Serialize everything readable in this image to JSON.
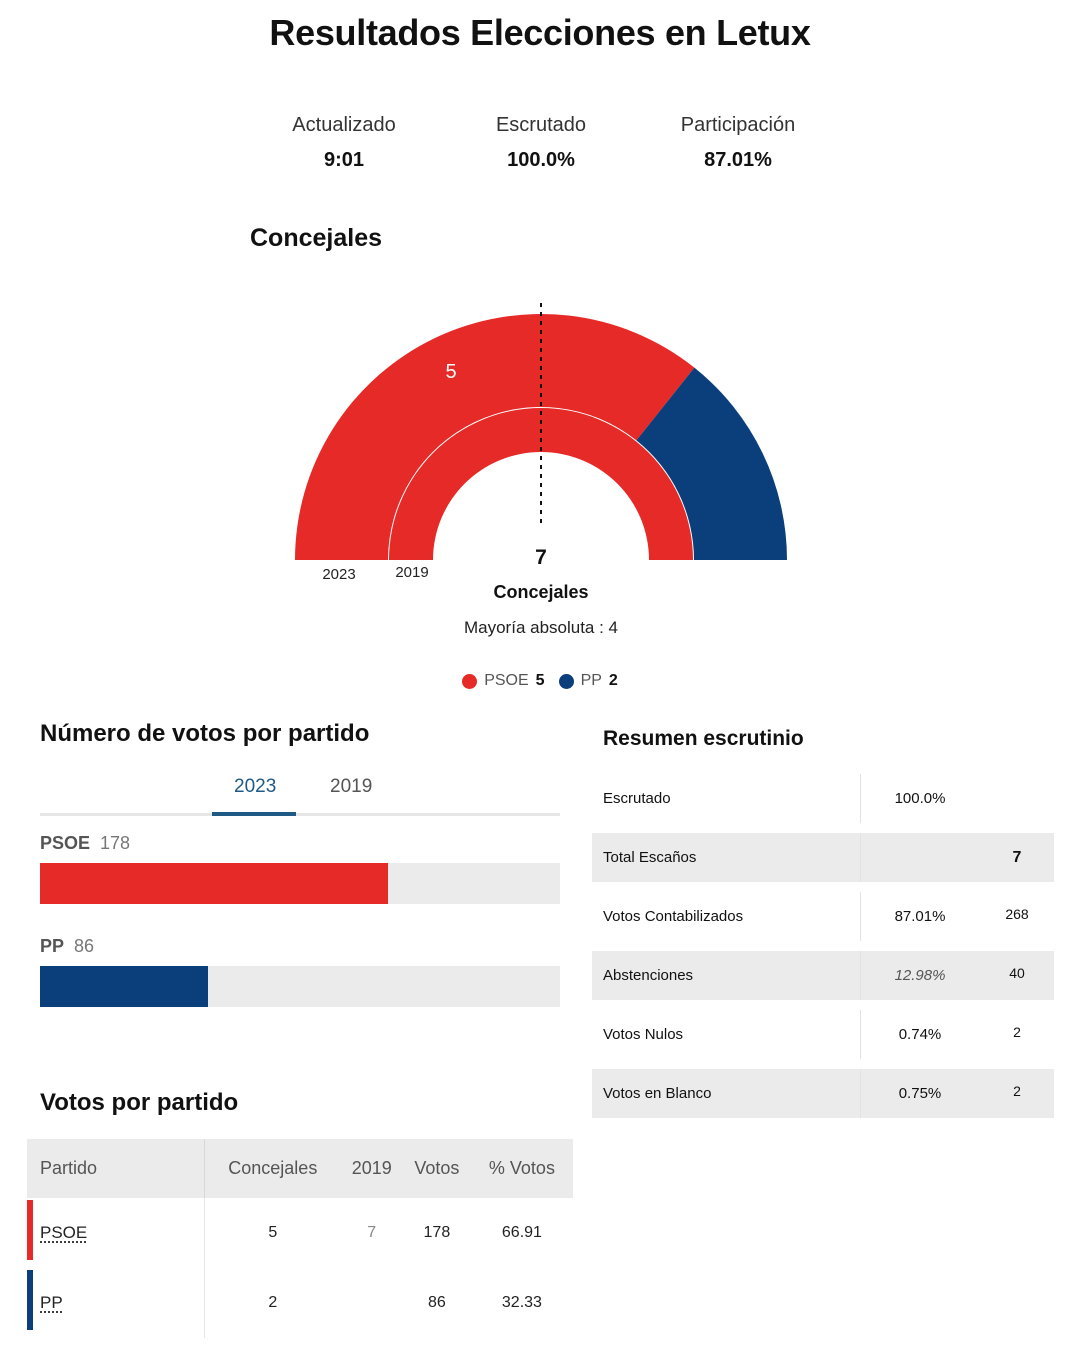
{
  "title": "Resultados Elecciones en Letux",
  "stats": {
    "updated_label": "Actualizado",
    "updated_value": "9:01",
    "counted_label": "Escrutado",
    "counted_value": "100.0%",
    "turnout_label": "Participación",
    "turnout_value": "87.01%"
  },
  "seats_section": {
    "heading": "Concejales",
    "total": "7",
    "total_label": "Concejales",
    "majority_text": "Mayoría absoluta : 4",
    "year_outer": "2023",
    "year_inner": "2019"
  },
  "legend": [
    {
      "party": "PSOE",
      "seats": "5",
      "color": "#e52a27"
    },
    {
      "party": "PP",
      "seats": "2",
      "color": "#0b3f7c"
    }
  ],
  "votes_section": {
    "heading": "Número de votos por partido",
    "tabs": [
      {
        "label": "2023",
        "active": true
      },
      {
        "label": "2019",
        "active": false
      }
    ]
  },
  "table_section": {
    "heading": "Votos por partido",
    "columns": [
      "Partido",
      "Concejales",
      "2019",
      "Votos",
      "% Votos"
    ],
    "rows": [
      {
        "party": "PSOE",
        "seats": "5",
        "prev": "7",
        "votes": "178",
        "pct": "66.91",
        "color": "#e52a27"
      },
      {
        "party": "PP",
        "seats": "2",
        "prev": "",
        "votes": "86",
        "pct": "32.33",
        "color": "#0b3f7c"
      }
    ]
  },
  "summary": {
    "heading": "Resumen escrutinio",
    "rows": [
      {
        "label": "Escrutado",
        "pct": "100.0%",
        "count": ""
      },
      {
        "label": "Total Escaños",
        "pct": "",
        "count": "7"
      },
      {
        "label": "Votos Contabilizados",
        "pct": "87.01%",
        "count": "268"
      },
      {
        "label": "Abstenciones",
        "pct": "12.98%",
        "count": "40"
      },
      {
        "label": "Votos Nulos",
        "pct": "0.74%",
        "count": "2"
      },
      {
        "label": "Votos en Blanco",
        "pct": "0.75%",
        "count": "2"
      }
    ]
  },
  "chart_data": [
    {
      "type": "pie",
      "subtype": "parliament-semicircle",
      "title": "Concejales",
      "rings": [
        {
          "name": "2023",
          "series": [
            {
              "name": "PSOE",
              "value": 5,
              "color": "#e52a27"
            },
            {
              "name": "PP",
              "value": 2,
              "color": "#0b3f7c"
            }
          ]
        },
        {
          "name": "2019",
          "series": [
            {
              "name": "PSOE",
              "value": 7,
              "color": "#e52a27"
            }
          ]
        }
      ],
      "total": 7,
      "majority": 4,
      "data_labels": [
        "5"
      ]
    },
    {
      "type": "bar",
      "orientation": "horizontal",
      "title": "Número de votos por partido",
      "categories": [
        "PSOE",
        "PP"
      ],
      "values": [
        178,
        86
      ],
      "colors": [
        "#e52a27",
        "#0b3f7c"
      ],
      "xlim": [
        0,
        266
      ]
    }
  ]
}
